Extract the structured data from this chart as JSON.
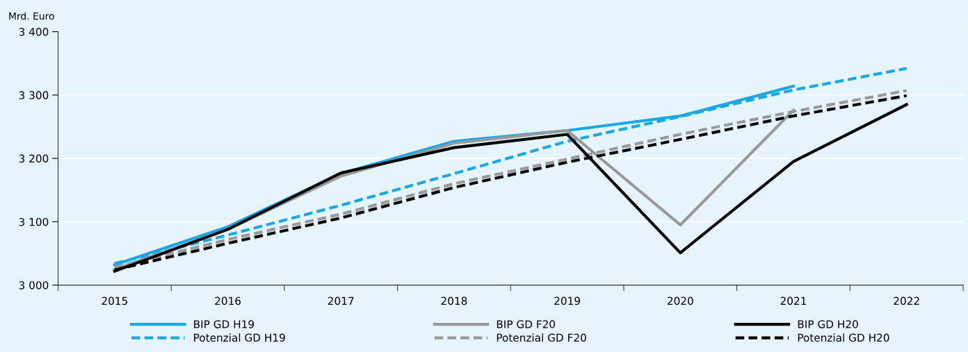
{
  "chart_data": {
    "type": "line",
    "ylabel": "Mrd. Euro",
    "categories": [
      "2015",
      "2016",
      "2017",
      "2018",
      "2019",
      "2020",
      "2021",
      "2022"
    ],
    "series": [
      {
        "name": "BIP GD H19",
        "color": "#1aa7e6",
        "line_style": "solid",
        "values": [
          3032,
          3092,
          3176,
          3227,
          3244,
          3267,
          3314,
          null
        ]
      },
      {
        "name": "Potenzial GD H19",
        "color": "#1aa7e6",
        "line_style": "dashed",
        "values": [
          3034,
          3079,
          3126,
          3176,
          3227,
          3266,
          3308,
          3342
        ]
      },
      {
        "name": "BIP GD F20",
        "color": "#999999",
        "line_style": "solid",
        "values": [
          3025,
          3088,
          3172,
          3224,
          3244,
          3095,
          3276,
          null
        ]
      },
      {
        "name": "Potenzial GD F20",
        "color": "#999999",
        "line_style": "dashed",
        "values": [
          3028,
          3072,
          3112,
          3160,
          3199,
          3238,
          3274,
          3307
        ]
      },
      {
        "name": "BIP GD H20",
        "color": "#000000",
        "line_style": "solid",
        "values": [
          3022,
          3088,
          3177,
          3217,
          3238,
          3051,
          3195,
          3285
        ]
      },
      {
        "name": "Potenzial GD H20",
        "color": "#000000",
        "line_style": "dashed",
        "values": [
          3024,
          3066,
          3106,
          3154,
          3194,
          3230,
          3267,
          3299
        ]
      }
    ],
    "ylim": [
      3000,
      3400
    ],
    "yticks": [
      {
        "value": 3000,
        "label": "3 000"
      },
      {
        "value": 3100,
        "label": "3 100"
      },
      {
        "value": 3200,
        "label": "3 200"
      },
      {
        "value": 3300,
        "label": "3 300"
      },
      {
        "value": 3400,
        "label": "3 400"
      }
    ],
    "grid": "y",
    "legend": "bottom",
    "marker": "none"
  }
}
